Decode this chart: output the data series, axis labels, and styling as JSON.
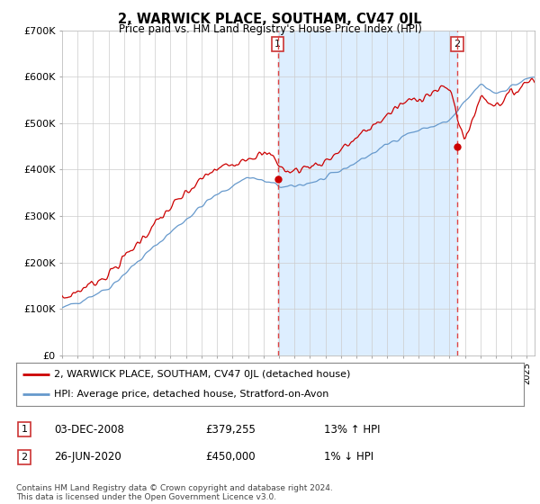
{
  "title": "2, WARWICK PLACE, SOUTHAM, CV47 0JL",
  "subtitle": "Price paid vs. HM Land Registry's House Price Index (HPI)",
  "ylabel_ticks": [
    "£0",
    "£100K",
    "£200K",
    "£300K",
    "£400K",
    "£500K",
    "£600K",
    "£700K"
  ],
  "ylim": [
    0,
    700000
  ],
  "xlim_start": 1995.0,
  "xlim_end": 2025.5,
  "property_color": "#cc0000",
  "hpi_color": "#6699cc",
  "hpi_fill_color": "#ddeeff",
  "vline_color": "#dd4444",
  "marker1_date": 2008.92,
  "marker2_date": 2020.49,
  "marker1_price": 379255,
  "marker2_price": 450000,
  "legend_property": "2, WARWICK PLACE, SOUTHAM, CV47 0JL (detached house)",
  "legend_hpi": "HPI: Average price, detached house, Stratford-on-Avon",
  "table_row1": [
    "1",
    "03-DEC-2008",
    "£379,255",
    "13% ↑ HPI"
  ],
  "table_row2": [
    "2",
    "26-JUN-2020",
    "£450,000",
    "1% ↓ HPI"
  ],
  "footnote": "Contains HM Land Registry data © Crown copyright and database right 2024.\nThis data is licensed under the Open Government Licence v3.0.",
  "background_color": "#ffffff",
  "grid_color": "#cccccc"
}
